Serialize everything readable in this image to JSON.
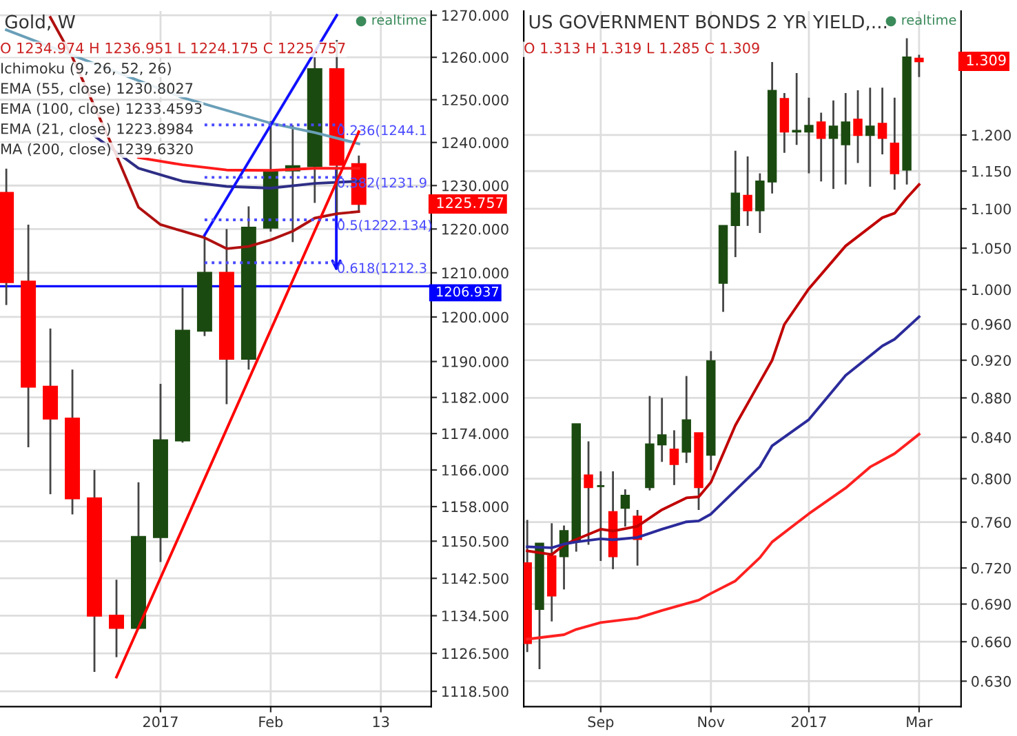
{
  "chart_data": [
    {
      "type": "candlestick",
      "title": "Gold, W",
      "x": [
        "2016-11-14",
        "2016-11-21",
        "2016-11-28",
        "2016-12-05",
        "2016-12-12",
        "2016-12-19",
        "2016-12-26",
        "2017-01-02",
        "2017-01-09",
        "2017-01-16",
        "2017-01-23",
        "2017-01-30",
        "2017-02-06",
        "2017-02-13",
        "2017-02-20",
        "2017-02-27",
        "2017-03-06"
      ],
      "ohlc": [
        [
          1228.3,
          1233.9,
          1202.7,
          1207.9
        ],
        [
          1208.0,
          1221.0,
          1171.0,
          1184.4
        ],
        [
          1184.4,
          1197.4,
          1160.7,
          1177.3
        ],
        [
          1177.3,
          1188.2,
          1156.3,
          1159.8
        ],
        [
          1159.8,
          1166.0,
          1122.6,
          1134.5
        ],
        [
          1134.5,
          1142.2,
          1125.7,
          1131.9
        ],
        [
          1131.9,
          1163.3,
          1131.6,
          1151.4
        ],
        [
          1151.4,
          1185.0,
          1146.0,
          1172.5
        ],
        [
          1172.5,
          1206.6,
          1172.0,
          1196.9
        ],
        [
          1196.9,
          1218.4,
          1195.7,
          1210.0
        ],
        [
          1210.0,
          1220.0,
          1180.5,
          1190.6
        ],
        [
          1190.6,
          1225.2,
          1188.2,
          1220.3
        ],
        [
          1220.3,
          1245.0,
          1219.4,
          1233.5
        ],
        [
          1233.5,
          1244.0,
          1217.0,
          1234.5
        ],
        [
          1234.5,
          1260.0,
          1226.0,
          1257.2
        ],
        [
          1257.2,
          1264.1,
          1223.0,
          1234.8
        ],
        [
          1234.974,
          1236.951,
          1224.175,
          1225.757
        ]
      ],
      "colors": [
        "#ff0000",
        "#ff0000",
        "#ff0000",
        "#ff0000",
        "#ff0000",
        "#ff0000",
        "#1b4a10",
        "#1b4a10",
        "#1b4a10",
        "#1b4a10",
        "#ff0000",
        "#1b4a10",
        "#1b4a10",
        "#1b4a10",
        "#1b4a10",
        "#ff0000",
        "#ff0000"
      ],
      "series": [
        {
          "type": "line",
          "color": "#2e2e86",
          "x": [
            "2016-12-12",
            "2016-12-26",
            "2017-01-09",
            "2017-01-23",
            "2017-02-06",
            "2017-02-20",
            "2017-03-06"
          ],
          "values": [
            1241.5,
            1234.0,
            1231.0,
            1229.8,
            1229.4,
            1230.5,
            1231.0
          ]
        },
        {
          "type": "line",
          "color": "#ff1a1a",
          "x": [
            "2016-12-26",
            "2017-01-09",
            "2017-01-23",
            "2017-02-06",
            "2017-02-20",
            "2017-03-06"
          ],
          "values": [
            1236.5,
            1234.8,
            1233.6,
            1233.5,
            1234.0,
            1234.0
          ]
        },
        {
          "type": "line",
          "color": "#b01010",
          "x": [
            "2016-11-28",
            "2016-12-05",
            "2016-12-19",
            "2016-12-26",
            "2017-01-02",
            "2017-01-09",
            "2017-01-16",
            "2017-01-23",
            "2017-01-30",
            "2017-02-06",
            "2017-02-13",
            "2017-02-20",
            "2017-02-27",
            "2017-03-06"
          ],
          "values": [
            1269.5,
            1260.0,
            1237.0,
            1225.0,
            1221.0,
            1219.5,
            1218.0,
            1215.5,
            1216.0,
            1217.5,
            1219.5,
            1222.5,
            1223.5,
            1224.0
          ]
        },
        {
          "type": "line",
          "color": "#6a9fb8",
          "x": [
            "2016-11-14",
            "2016-12-12",
            "2017-01-09",
            "2017-02-06",
            "2017-02-20",
            "2017-03-06"
          ],
          "values": [
            1266.5,
            1258.5,
            1250.5,
            1244.5,
            1242.3,
            1239.7
          ]
        },
        {
          "type": "line",
          "color": "#1010ff",
          "x": [
            "2017-01-16",
            "2017-02-27"
          ],
          "values": [
            1218.6,
            1270.0
          ]
        },
        {
          "type": "line",
          "color": "#ff0000",
          "x": [
            "2016-12-19",
            "2017-03-06"
          ],
          "values": [
            1121.5,
            1242.5
          ]
        },
        {
          "type": "line",
          "color": "#4a4aff",
          "line_style": "dotted",
          "x": [
            "2017-01-16",
            "2017-03-02"
          ],
          "values": [
            1244.1,
            1244.1
          ]
        },
        {
          "type": "line",
          "color": "#4a4aff",
          "line_style": "dotted",
          "x": [
            "2017-01-16",
            "2017-03-02"
          ],
          "values": [
            1231.9,
            1231.9
          ]
        },
        {
          "type": "line",
          "color": "#4a4aff",
          "line_style": "dotted",
          "x": [
            "2017-01-16",
            "2017-03-02"
          ],
          "values": [
            1222.1,
            1222.1
          ]
        },
        {
          "type": "line",
          "color": "#4a4aff",
          "line_style": "dotted",
          "x": [
            "2017-01-16",
            "2017-03-02"
          ],
          "values": [
            1212.3,
            1212.3
          ]
        }
      ],
      "ref_lines": [
        {
          "axis": "y",
          "value": 1206.937,
          "label": "1206.937",
          "color": "#0000ff"
        }
      ],
      "annotations": [
        "O 1234.974 H 1236.951 L 1224.175 C 1225.757",
        "Ichimoku (9, 26, 52, 26)",
        "EMA (55, close) 1230.8027",
        "EMA (100, close) 1233.4593",
        "EMA (21, close) 1223.8984",
        "MA (200, close) 1239.6320",
        "● realtime",
        {
          "text": "0.236(1244.1",
          "x": "2017-02-27",
          "y": 1244.1
        },
        {
          "text": "0.382(1231.9",
          "x": "2017-02-27",
          "y": 1231.9
        },
        {
          "text": "0.5(1222.134)",
          "x": "2017-02-27",
          "y": 1222.1
        },
        {
          "text": "0.618(1212.3",
          "x": "2017-02-27",
          "y": 1212.3
        },
        "1225.757"
      ],
      "xlim": [
        "2016-11-12",
        "2017-03-29"
      ],
      "xticks": [
        {
          "value": "2017-01-02",
          "label": "2017"
        },
        {
          "value": "2017-02-06",
          "label": "Feb"
        },
        {
          "value": "2017-03-13",
          "label": "13"
        }
      ],
      "log": "y",
      "ylim": [
        1115.3,
        1271.0
      ],
      "yticks": [
        {
          "value": 1118.5,
          "label": "1118.500"
        },
        {
          "value": 1126.5,
          "label": "1126.500"
        },
        {
          "value": 1134.5,
          "label": "1134.500"
        },
        {
          "value": 1142.5,
          "label": "1142.500"
        },
        {
          "value": 1150.5,
          "label": "1150.500"
        },
        {
          "value": 1158,
          "label": "1158.000"
        },
        {
          "value": 1166,
          "label": "1166.000"
        },
        {
          "value": 1174,
          "label": "1174.000"
        },
        {
          "value": 1182,
          "label": "1182.000"
        },
        {
          "value": 1190,
          "label": "1190.000"
        },
        {
          "value": 1200,
          "label": "1200.000"
        },
        {
          "value": 1210,
          "label": "1210.000"
        },
        {
          "value": 1220,
          "label": "1220.000"
        },
        {
          "value": 1230,
          "label": "1230.000"
        },
        {
          "value": 1240,
          "label": "1240.000"
        },
        {
          "value": 1250,
          "label": "1250.000"
        },
        {
          "value": 1260,
          "label": "1260.000"
        },
        {
          "value": 1270,
          "label": "1270.000"
        }
      ],
      "grid": true
    },
    {
      "type": "candlestick",
      "title": "US GOVERNMENT BONDS 2 YR YIELD,...",
      "x": [
        "2016-07-25",
        "2016-08-01",
        "2016-08-08",
        "2016-08-15",
        "2016-08-22",
        "2016-08-29",
        "2016-09-05",
        "2016-09-12",
        "2016-09-19",
        "2016-09-26",
        "2016-10-03",
        "2016-10-10",
        "2016-10-17",
        "2016-10-24",
        "2016-10-31",
        "2016-11-07",
        "2016-11-14",
        "2016-11-21",
        "2016-11-28",
        "2016-12-05",
        "2016-12-12",
        "2016-12-19",
        "2016-12-26",
        "2017-01-02",
        "2017-01-09",
        "2017-01-16",
        "2017-01-23",
        "2017-01-30",
        "2017-02-06",
        "2017-02-13",
        "2017-02-20",
        "2017-02-27",
        "2017-03-06"
      ],
      "ohlc": [
        [
          0.724,
          0.762,
          0.652,
          0.659
        ],
        [
          0.686,
          0.741,
          0.639,
          0.741
        ],
        [
          0.73,
          0.759,
          0.676,
          0.697
        ],
        [
          0.73,
          0.757,
          0.702,
          0.752
        ],
        [
          0.743,
          0.853,
          0.734,
          0.853
        ],
        [
          0.803,
          0.836,
          0.74,
          0.792
        ],
        [
          0.793,
          0.807,
          0.726,
          0.793
        ],
        [
          0.769,
          0.807,
          0.719,
          0.73
        ],
        [
          0.773,
          0.79,
          0.756,
          0.784
        ],
        [
          0.765,
          0.771,
          0.722,
          0.745
        ],
        [
          0.792,
          0.882,
          0.789,
          0.833
        ],
        [
          0.833,
          0.88,
          0.816,
          0.842
        ],
        [
          0.828,
          0.847,
          0.794,
          0.814
        ],
        [
          0.826,
          0.903,
          0.815,
          0.857
        ],
        [
          0.844,
          0.844,
          0.771,
          0.792
        ],
        [
          0.823,
          0.93,
          0.808,
          0.919
        ],
        [
          1.008,
          1.078,
          0.974,
          1.078
        ],
        [
          1.079,
          1.178,
          1.039,
          1.12
        ],
        [
          1.117,
          1.17,
          1.078,
          1.098
        ],
        [
          1.098,
          1.147,
          1.069,
          1.136
        ],
        [
          1.136,
          1.308,
          1.12,
          1.264
        ],
        [
          1.252,
          1.261,
          1.175,
          1.205
        ],
        [
          1.205,
          1.291,
          1.186,
          1.206
        ],
        [
          1.205,
          1.254,
          1.147,
          1.213
        ],
        [
          1.218,
          1.232,
          1.136,
          1.196
        ],
        [
          1.196,
          1.25,
          1.126,
          1.212
        ],
        [
          1.187,
          1.261,
          1.132,
          1.218
        ],
        [
          1.222,
          1.265,
          1.161,
          1.2
        ],
        [
          1.2,
          1.269,
          1.129,
          1.212
        ],
        [
          1.216,
          1.269,
          1.173,
          1.196
        ],
        [
          1.188,
          1.254,
          1.125,
          1.147
        ],
        [
          1.152,
          1.345,
          1.132,
          1.315
        ],
        [
          1.313,
          1.319,
          1.285,
          1.309
        ]
      ],
      "colors": [
        "#ff0000",
        "#1b4a10",
        "#ff0000",
        "#1b4a10",
        "#1b4a10",
        "#ff0000",
        "#1b4a10",
        "#ff0000",
        "#1b4a10",
        "#ff0000",
        "#1b4a10",
        "#1b4a10",
        "#ff0000",
        "#1b4a10",
        "#ff0000",
        "#1b4a10",
        "#1b4a10",
        "#1b4a10",
        "#ff0000",
        "#1b4a10",
        "#1b4a10",
        "#ff0000",
        "#1b4a10",
        "#1b4a10",
        "#ff0000",
        "#1b4a10",
        "#1b4a10",
        "#ff0000",
        "#1b4a10",
        "#ff0000",
        "#ff0000",
        "#1b4a10",
        "#ff0000"
      ],
      "series": [
        {
          "type": "line",
          "color": "#c00000",
          "x": [
            "2016-07-25",
            "2016-08-08",
            "2016-08-15",
            "2016-08-22",
            "2016-09-05",
            "2016-09-12",
            "2016-09-26",
            "2016-10-10",
            "2016-10-24",
            "2016-10-31",
            "2016-11-07",
            "2016-11-21",
            "2016-12-05",
            "2016-12-12",
            "2016-12-19",
            "2017-01-02",
            "2017-01-23",
            "2017-02-13",
            "2017-02-20",
            "2017-02-27",
            "2017-03-06"
          ],
          "values": [
            0.7347,
            0.7315,
            0.7398,
            0.7447,
            0.7537,
            0.7521,
            0.7563,
            0.7712,
            0.7821,
            0.783,
            0.7966,
            0.8521,
            0.8968,
            0.92,
            0.9597,
            1.001,
            1.0528,
            1.0885,
            1.0942,
            1.1141,
            1.1319
          ]
        },
        {
          "type": "line",
          "color": "#2b2b9b",
          "x": [
            "2016-07-25",
            "2016-08-08",
            "2016-08-15",
            "2016-08-22",
            "2016-09-05",
            "2016-09-12",
            "2016-09-26",
            "2016-10-10",
            "2016-10-24",
            "2016-10-31",
            "2016-11-07",
            "2016-12-05",
            "2016-12-12",
            "2017-01-02",
            "2017-01-23",
            "2017-02-13",
            "2017-02-20",
            "2017-03-06"
          ],
          "values": [
            0.7382,
            0.7374,
            0.7406,
            0.7425,
            0.7452,
            0.7444,
            0.7464,
            0.7537,
            0.7603,
            0.7611,
            0.7673,
            0.8115,
            0.8317,
            0.8578,
            0.9036,
            0.9356,
            0.9431,
            0.9684
          ]
        },
        {
          "type": "line",
          "color": "#ff2020",
          "x": [
            "2016-07-25",
            "2016-08-15",
            "2016-08-22",
            "2016-09-05",
            "2016-09-26",
            "2016-10-10",
            "2016-10-31",
            "2016-11-07",
            "2016-11-21",
            "2016-12-05",
            "2016-12-12",
            "2017-01-02",
            "2017-01-23",
            "2017-02-06",
            "2017-02-20",
            "2017-03-06"
          ],
          "values": [
            0.662,
            0.6655,
            0.6697,
            0.6751,
            0.6787,
            0.6848,
            0.6932,
            0.6987,
            0.7091,
            0.7289,
            0.7425,
            0.7676,
            0.7912,
            0.8111,
            0.824,
            0.8431
          ]
        }
      ],
      "annotations": [
        "O 1.313 H 1.319 L 1.285 C 1.309",
        "● realtime",
        "1.309"
      ],
      "xlim": [
        "2016-07-23",
        "2017-03-30"
      ],
      "xticks": [
        {
          "value": "2016-09-05",
          "label": "Sep"
        },
        {
          "value": "2016-11-07",
          "label": "Nov"
        },
        {
          "value": "2017-01-02",
          "label": "2017"
        },
        {
          "value": "2017-03-06",
          "label": "Mar"
        }
      ],
      "log": "y",
      "ylim": [
        0.6114,
        1.389
      ],
      "yticks": [
        {
          "value": 0.63,
          "label": "0.630"
        },
        {
          "value": 0.66,
          "label": "0.660"
        },
        {
          "value": 0.69,
          "label": "0.690"
        },
        {
          "value": 0.72,
          "label": "0.720"
        },
        {
          "value": 0.76,
          "label": "0.760"
        },
        {
          "value": 0.8,
          "label": "0.800"
        },
        {
          "value": 0.84,
          "label": "0.840"
        },
        {
          "value": 0.88,
          "label": "0.880"
        },
        {
          "value": 0.92,
          "label": "0.920"
        },
        {
          "value": 0.96,
          "label": "0.960"
        },
        {
          "value": 1.0,
          "label": "1.000"
        },
        {
          "value": 1.05,
          "label": "1.050"
        },
        {
          "value": 1.1,
          "label": "1.100"
        },
        {
          "value": 1.15,
          "label": "1.150"
        },
        {
          "value": 1.2,
          "label": "1.200"
        }
      ],
      "grid": true
    }
  ]
}
